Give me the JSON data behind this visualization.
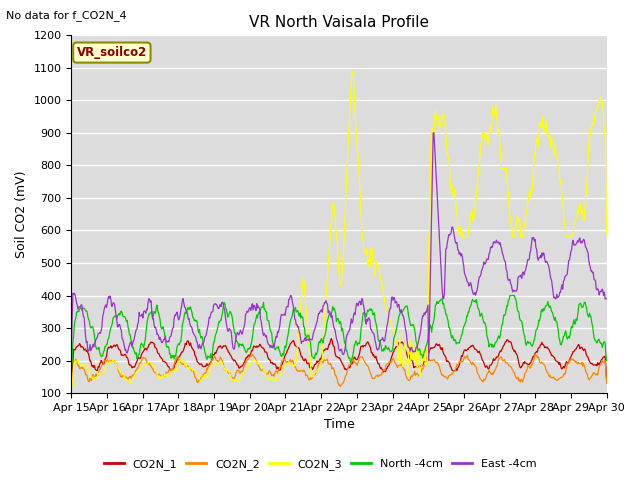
{
  "title": "VR North Vaisala Profile",
  "subtitle": "No data for f_CO2N_4",
  "xlabel": "Time",
  "ylabel": "Soil CO2 (mV)",
  "box_label": "VR_soilco2",
  "ylim": [
    100,
    1200
  ],
  "yticks": [
    100,
    200,
    300,
    400,
    500,
    600,
    700,
    800,
    900,
    1000,
    1100,
    1200
  ],
  "xtick_labels": [
    "Apr 15",
    "Apr 16",
    "Apr 17",
    "Apr 18",
    "Apr 19",
    "Apr 20",
    "Apr 21",
    "Apr 22",
    "Apr 23",
    "Apr 24",
    "Apr 25",
    "Apr 26",
    "Apr 27",
    "Apr 28",
    "Apr 29",
    "Apr 30"
  ],
  "colors": {
    "CO2N_1": "#cc0000",
    "CO2N_2": "#ff8800",
    "CO2N_3": "#ffff00",
    "North_4cm": "#00cc00",
    "East_4cm": "#9933cc"
  },
  "legend_labels": [
    "CO2N_1",
    "CO2N_2",
    "CO2N_3",
    "North -4cm",
    "East -4cm"
  ],
  "plot_bg_color": "#dcdcdc",
  "grid_color": "#ffffff",
  "fig_width": 6.4,
  "fig_height": 4.8,
  "dpi": 100
}
